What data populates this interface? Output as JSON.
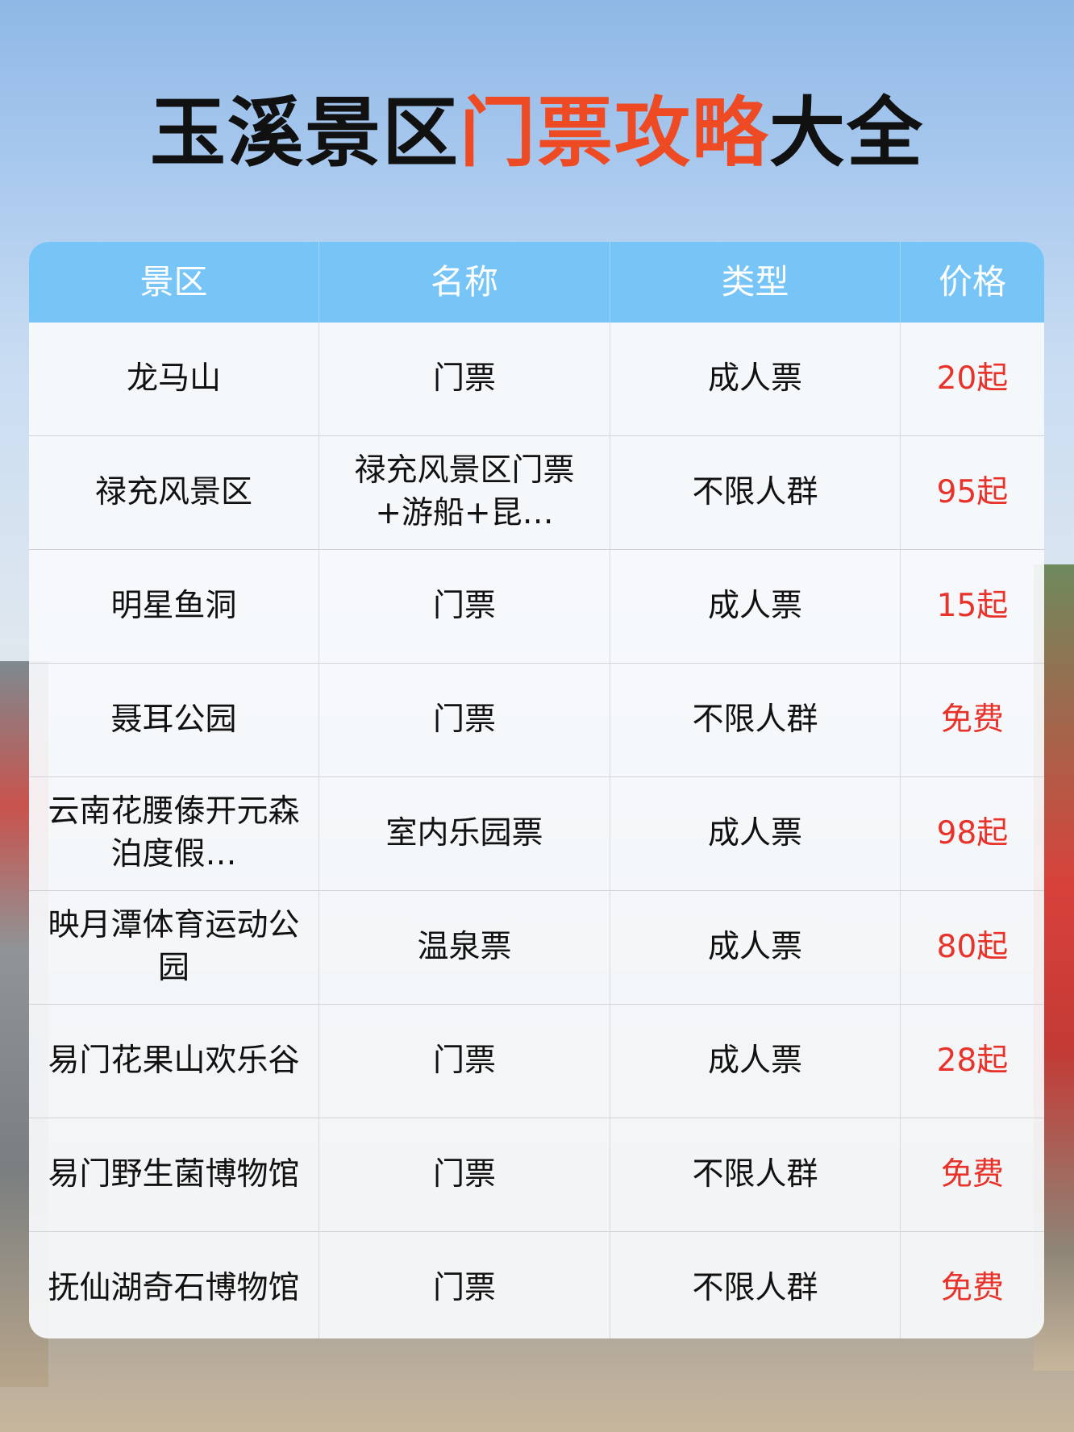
{
  "title": {
    "part1": "玉溪景区",
    "highlight": "门票攻略",
    "part2": "大全"
  },
  "colors": {
    "accent": "#ee4a23",
    "header_bg": "#77c5f6",
    "price": "#e8322a"
  },
  "table": {
    "headers": [
      "景区",
      "名称",
      "类型",
      "价格"
    ],
    "rows": [
      {
        "scenic": "龙马山",
        "name": "门票",
        "type": "成人票",
        "price": "20起"
      },
      {
        "scenic": "禄充风景区",
        "name": "禄充风景区门票+游船+昆…",
        "type": "不限人群",
        "price": "95起"
      },
      {
        "scenic": "明星鱼洞",
        "name": "门票",
        "type": "成人票",
        "price": "15起"
      },
      {
        "scenic": "聂耳公园",
        "name": "门票",
        "type": "不限人群",
        "price": "免费"
      },
      {
        "scenic": "云南花腰傣开元森泊度假…",
        "name": "室内乐园票",
        "type": "成人票",
        "price": "98起"
      },
      {
        "scenic": "映月潭体育运动公园",
        "name": "温泉票",
        "type": "成人票",
        "price": "80起"
      },
      {
        "scenic": "易门花果山欢乐谷",
        "name": "门票",
        "type": "成人票",
        "price": "28起"
      },
      {
        "scenic": "易门野生菌博物馆",
        "name": "门票",
        "type": "不限人群",
        "price": "免费"
      },
      {
        "scenic": "抚仙湖奇石博物馆",
        "name": "门票",
        "type": "不限人群",
        "price": "免费"
      }
    ]
  }
}
